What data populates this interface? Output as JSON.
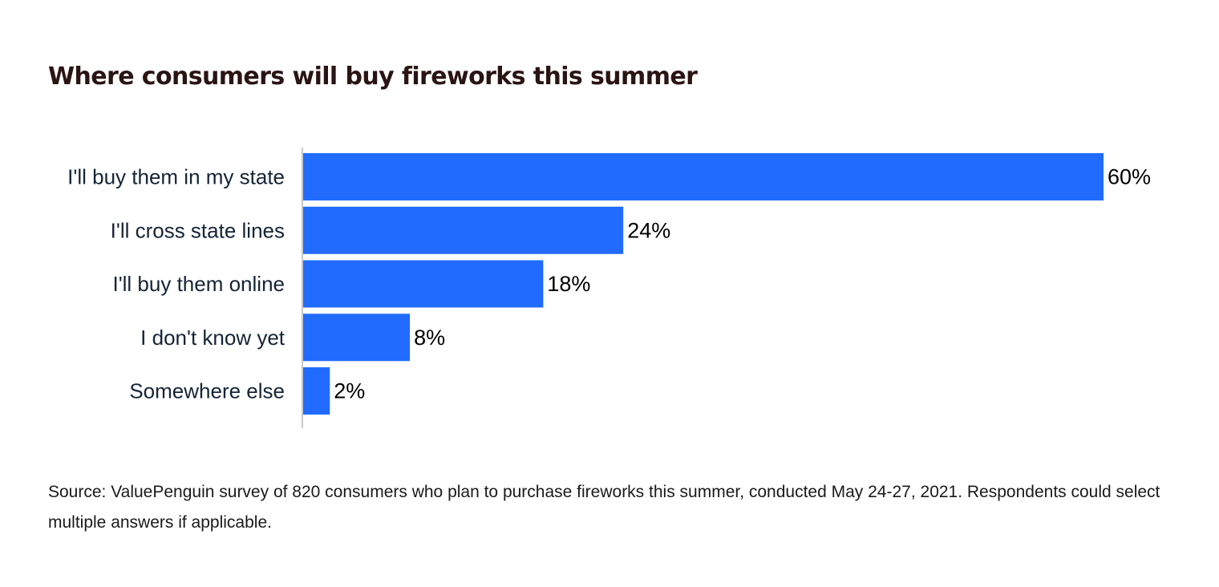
{
  "chart_data": {
    "type": "bar",
    "orientation": "horizontal",
    "title": "Where consumers will buy fireworks this summer",
    "categories": [
      "I'll buy them in my state",
      "I'll cross state lines",
      "I'll buy them online",
      "I don't know yet",
      "Somewhere else"
    ],
    "values": [
      60,
      24,
      18,
      8,
      2
    ],
    "value_labels": [
      "60%",
      "24%",
      "18%",
      "8%",
      "2%"
    ],
    "unit": "%",
    "bar_color": "#216bff",
    "xlim": [
      0,
      60
    ],
    "grid": false,
    "legend": "none"
  },
  "source": "Source: ValuePenguin survey of 820 consumers who plan to purchase fireworks this summer, conducted May 24-27, 2021. Respondents could select multiple answers if applicable."
}
